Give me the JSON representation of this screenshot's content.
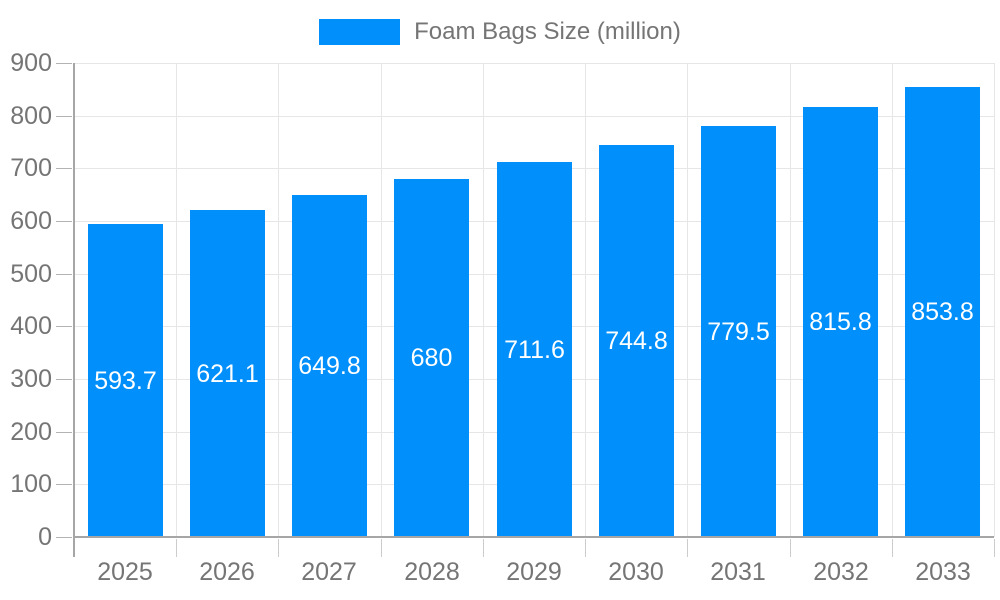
{
  "legend": {
    "label": "Foam Bags Size (million)"
  },
  "chart_data": {
    "type": "bar",
    "title": "Foam Bags Size (million)",
    "categories": [
      "2025",
      "2026",
      "2027",
      "2028",
      "2029",
      "2030",
      "2031",
      "2032",
      "2033"
    ],
    "series": [
      {
        "name": "Foam Bags Size (million)",
        "values": [
          593.7,
          621.1,
          649.8,
          680,
          711.6,
          744.8,
          779.5,
          815.8,
          853.8
        ],
        "value_labels": [
          "593.7",
          "621.1",
          "649.8",
          "680",
          "711.6",
          "744.8",
          "779.5",
          "815.8",
          "853.8"
        ]
      }
    ],
    "xlabel": "",
    "ylabel": "",
    "ylim": [
      0,
      900
    ],
    "yticks": [
      0,
      100,
      200,
      300,
      400,
      500,
      600,
      700,
      800,
      900
    ],
    "grid": true,
    "legend_position": "top-center",
    "colors": {
      "bar": "#008FFB",
      "bar_value_text": "#ffffff",
      "axis_text": "#757575",
      "legend_text": "#757575",
      "gridline": "#e6e6e6",
      "axis_line": "#a6a6a6",
      "category_tick": "#cccccc",
      "background": "#ffffff"
    }
  }
}
